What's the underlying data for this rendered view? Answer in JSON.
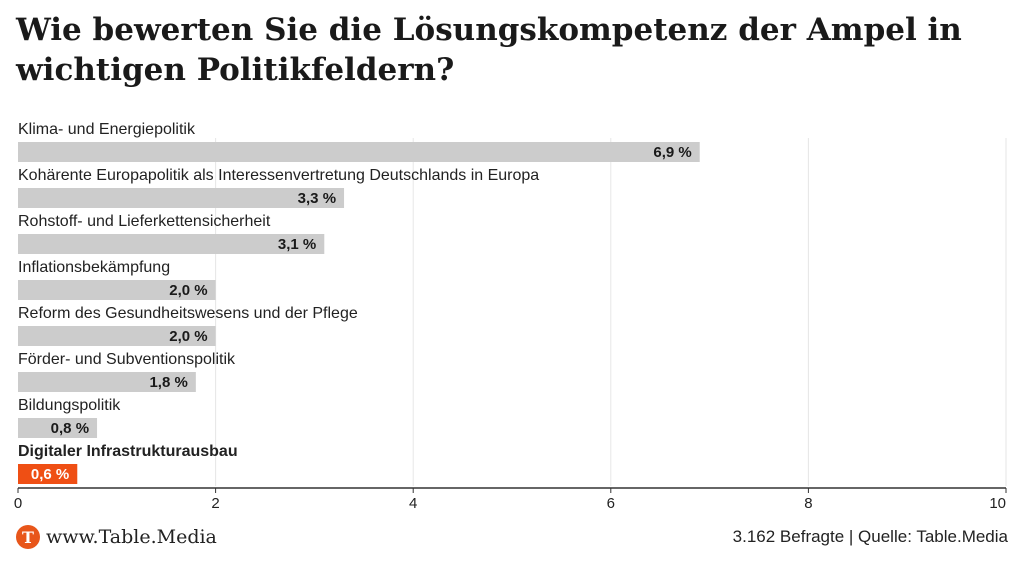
{
  "title": "Wie bewerten Sie die Lösungskompetenz der Ampel in wichtigen Politikfeldern?",
  "footer": {
    "site": "www.Table.Media",
    "logo_letter": "T",
    "note": "3.162 Befragte | Quelle: Table.Media"
  },
  "colors": {
    "bar": "#cccccc",
    "highlight": "#ef4f14",
    "accent_logo": "#e8561a"
  },
  "chart_data": {
    "type": "bar",
    "orientation": "horizontal",
    "title": "Wie bewerten Sie die Lösungskompetenz der Ampel in wichtigen Politikfeldern?",
    "xlabel": "",
    "ylabel": "",
    "xlim": [
      0,
      10
    ],
    "xticks": [
      0,
      2,
      4,
      6,
      8,
      10
    ],
    "grid": true,
    "categories": [
      "Klima- und Energiepolitik",
      "Kohärente Europapolitik als Interessenvertretung Deutschlands in Europa",
      "Rohstoff- und Lieferkettensicherheit",
      "Inflationsbekämpfung",
      "Reform des Gesundheitswesens und der Pflege",
      "Förder- und Subventionspolitik",
      "Bildungspolitik",
      "Digitaler Infrastrukturausbau"
    ],
    "values": [
      6.9,
      3.3,
      3.1,
      2.0,
      2.0,
      1.8,
      0.8,
      0.6
    ],
    "value_labels": [
      "6,9 %",
      "3,3 %",
      "3,1 %",
      "2,0 %",
      "2,0 %",
      "1,8 %",
      "0,8 %",
      "0,6 %"
    ],
    "highlight_index": 7
  }
}
